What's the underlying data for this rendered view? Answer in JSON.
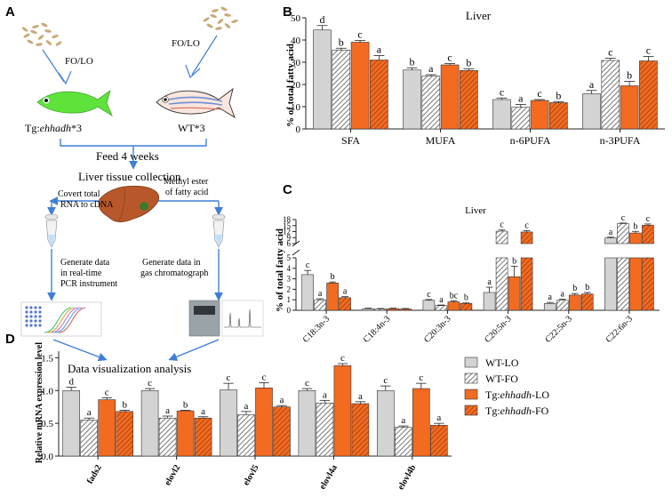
{
  "figure": {
    "panel_labels": [
      "A",
      "B",
      "C",
      "D"
    ],
    "colors": {
      "WT-LO": "#d3d3d3",
      "WT-FO": "#ffffff",
      "Tg-LO": "#f26b21",
      "Tg-FO": "#f26b21",
      "arrow": "#3f7fd6",
      "edge": "#333333"
    }
  },
  "workflow": {
    "left_feed": "FO/LO",
    "right_feed": "FO/LO",
    "left_fish_prefix": "Tg:",
    "left_fish_gene": "ehhadh",
    "left_fish_suffix": "*3",
    "right_fish": "WT*3",
    "feed_duration": "Feed 4 weeks",
    "collection": "Liver tissue collection",
    "left_step1_line1": "Covert total",
    "left_step1_line2": "RNA to cDNA",
    "right_step1_line1": "Methyl ester",
    "right_step1_line2": "of fatty acid",
    "left_step2_line1": "Generate data",
    "left_step2_line2": "in real-time",
    "left_step2_line3": "PCR instrument",
    "right_step2_line1": "Generate data in",
    "right_step2_line2": "gas chromatograph",
    "final": "Data visualization analysis"
  },
  "legend": {
    "items": [
      {
        "prefix": "WT-LO",
        "gene": "",
        "suffix": ""
      },
      {
        "prefix": "WT-FO",
        "gene": "",
        "suffix": ""
      },
      {
        "prefix": "Tg:",
        "gene": "ehhadh",
        "suffix": "-LO"
      },
      {
        "prefix": "Tg:",
        "gene": "ehhadh",
        "suffix": "-FO"
      }
    ]
  },
  "chart_data": [
    {
      "id": "B",
      "type": "bar",
      "title": "Liver",
      "ylabel": "% of total fatty acid",
      "ylim": [
        0,
        50
      ],
      "yticks": [
        "0",
        "10",
        "20",
        "30",
        "40",
        "50"
      ],
      "categories": [
        "SFA",
        "MUFA",
        "n-6PUFA",
        "n-3PUFA"
      ],
      "series": [
        {
          "values": [
            44.5,
            35.5,
            39.0,
            31.0
          ],
          "errors": [
            2.0,
            0.8,
            0.8,
            2.0
          ],
          "letters": [
            "d",
            "b",
            "c",
            "a"
          ]
        },
        {
          "values": [
            26.5,
            23.8,
            28.8,
            26.3
          ],
          "errors": [
            1.0,
            0.6,
            0.6,
            0.8
          ],
          "letters": [
            "b",
            "a",
            "c",
            "b"
          ]
        },
        {
          "values": [
            13.2,
            9.8,
            12.8,
            11.8
          ],
          "errors": [
            0.7,
            1.2,
            0.4,
            0.5
          ],
          "letters": [
            "c",
            "a",
            "c",
            "b"
          ]
        },
        {
          "values": [
            15.8,
            30.8,
            19.4,
            30.6
          ],
          "errors": [
            1.5,
            1.0,
            2.0,
            2.0
          ],
          "letters": [
            "a",
            "c",
            "b",
            "c"
          ]
        }
      ]
    },
    {
      "id": "C",
      "type": "bar",
      "title": "Liver",
      "ylabel": "% of total fatty acid",
      "y_break": [
        5,
        6
      ],
      "yticks_low": [
        "0",
        "1",
        "2",
        "3",
        "4",
        "5"
      ],
      "yticks_high": [
        "6",
        "9",
        "12",
        "15",
        "18"
      ],
      "categories": [
        "C18:3n-3",
        "C18:4n-3",
        "C20:3n-3",
        "C20:5n-3",
        "C22:5n-3",
        "C22:6n-3"
      ],
      "groups": [
        {
          "values": [
            3.4,
            1.0,
            2.6,
            1.2
          ],
          "errors": [
            0.4,
            0.1,
            0.1,
            0.1
          ],
          "letters": [
            "c",
            "a",
            "b",
            "a"
          ]
        },
        {
          "values": [
            0.15,
            0.12,
            0.15,
            0.12
          ],
          "errors": [
            0.05,
            0.05,
            0.05,
            0.05
          ],
          "letters": [
            "",
            "",
            "",
            ""
          ]
        },
        {
          "values": [
            0.95,
            0.45,
            0.8,
            0.65
          ],
          "errors": [
            0.08,
            0.05,
            0.1,
            0.05
          ],
          "letters": [
            "c",
            "a",
            "bc",
            "b"
          ]
        },
        {
          "values": [
            1.7,
            12.2,
            3.2,
            11.8
          ],
          "errors": [
            0.5,
            0.6,
            1.0,
            0.6
          ],
          "letters": [
            "a",
            "c",
            "b",
            "c"
          ]
        },
        {
          "values": [
            0.65,
            0.95,
            1.45,
            1.55
          ],
          "errors": [
            0.1,
            0.1,
            0.15,
            0.15
          ],
          "letters": [
            "a",
            "a",
            "b",
            "b"
          ]
        },
        {
          "values": [
            8.8,
            16.0,
            11.3,
            15.2
          ],
          "errors": [
            0.4,
            0.3,
            0.8,
            0.6
          ],
          "letters": [
            "a",
            "c",
            "b",
            "c"
          ]
        }
      ]
    },
    {
      "id": "D",
      "type": "bar",
      "ylabel": "Relative mRNA expression level",
      "ylim": [
        0,
        1.6
      ],
      "yticks": [
        "0.0",
        "0.5",
        "1.0",
        "1.5"
      ],
      "categories": [
        "fads2",
        "elovl2",
        "elovl5",
        "elovl4a",
        "elovl4b"
      ],
      "groups": [
        {
          "values": [
            1.0,
            0.55,
            0.86,
            0.68
          ],
          "errors": [
            0.05,
            0.03,
            0.03,
            0.02
          ],
          "letters": [
            "d",
            "a",
            "c",
            "b"
          ]
        },
        {
          "values": [
            1.0,
            0.58,
            0.69,
            0.58
          ],
          "errors": [
            0.03,
            0.03,
            0.01,
            0.02
          ],
          "letters": [
            "c",
            "a",
            "b",
            "a"
          ]
        },
        {
          "values": [
            1.01,
            0.63,
            1.04,
            0.75
          ],
          "errors": [
            0.1,
            0.05,
            0.08,
            0.02
          ],
          "letters": [
            "c",
            "a",
            "c",
            "a"
          ]
        },
        {
          "values": [
            1.0,
            0.81,
            1.38,
            0.8
          ],
          "errors": [
            0.03,
            0.04,
            0.03,
            0.03
          ],
          "letters": [
            "c",
            "a",
            "c",
            "a"
          ]
        },
        {
          "values": [
            1.0,
            0.44,
            1.03,
            0.47
          ],
          "errors": [
            0.07,
            0.02,
            0.08,
            0.03
          ],
          "letters": [
            "c",
            "a",
            "c",
            "a"
          ]
        }
      ]
    }
  ]
}
